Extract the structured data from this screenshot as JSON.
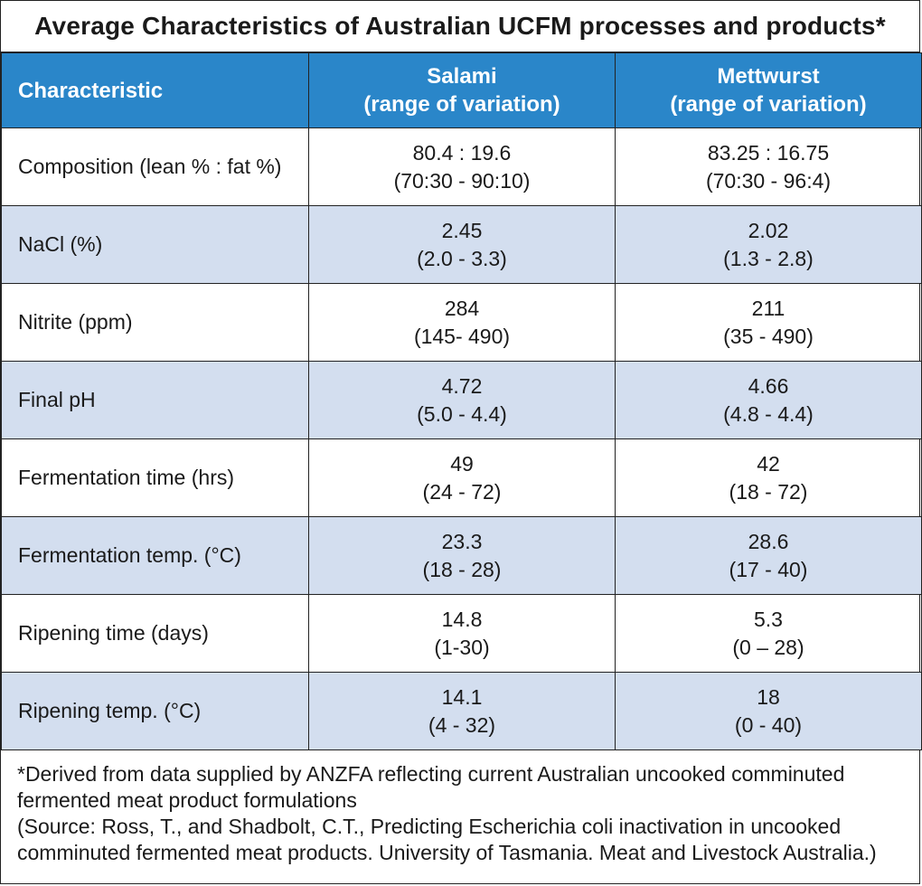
{
  "title": "Average Characteristics of Australian UCFM processes and products*",
  "columns": [
    {
      "line1": "Characteristic",
      "line2": ""
    },
    {
      "line1": "Salami",
      "line2": "(range of variation)"
    },
    {
      "line1": "Mettwurst",
      "line2": "(range of variation)"
    }
  ],
  "rows": [
    {
      "label": "Composition (lean % : fat %)",
      "salami": {
        "avg": "80.4 : 19.6",
        "range": "(70:30 - 90:10)"
      },
      "mettwurst": {
        "avg": "83.25 : 16.75",
        "range": "(70:30 - 96:4)"
      }
    },
    {
      "label": "NaCl (%)",
      "salami": {
        "avg": "2.45",
        "range": "(2.0 - 3.3)"
      },
      "mettwurst": {
        "avg": "2.02",
        "range": "(1.3 - 2.8)"
      }
    },
    {
      "label": "Nitrite (ppm)",
      "salami": {
        "avg": "284",
        "range": "(145- 490)"
      },
      "mettwurst": {
        "avg": "211",
        "range": "(35 - 490)"
      }
    },
    {
      "label": "Final pH",
      "salami": {
        "avg": "4.72",
        "range": "(5.0 - 4.4)"
      },
      "mettwurst": {
        "avg": "4.66",
        "range": "(4.8 - 4.4)"
      }
    },
    {
      "label": "Fermentation time (hrs)",
      "salami": {
        "avg": "49",
        "range": "(24 - 72)"
      },
      "mettwurst": {
        "avg": "42",
        "range": "(18 - 72)"
      }
    },
    {
      "label": "Fermentation temp. (°C)",
      "salami": {
        "avg": "23.3",
        "range": "(18 - 28)"
      },
      "mettwurst": {
        "avg": "28.6",
        "range": "(17 - 40)"
      }
    },
    {
      "label": "Ripening time (days)",
      "salami": {
        "avg": "14.8",
        "range": "(1-30)"
      },
      "mettwurst": {
        "avg": "5.3",
        "range": "(0 – 28)"
      }
    },
    {
      "label": "Ripening temp. (°C)",
      "salami": {
        "avg": "14.1",
        "range": "(4 - 32)"
      },
      "mettwurst": {
        "avg": "18",
        "range": "(0 - 40)"
      }
    }
  ],
  "footnote": {
    "line1": "*Derived from data supplied by ANZFA reflecting current Australian uncooked comminuted",
    "line2": "fermented meat product formulations",
    "line3": "(Source: Ross, T., and Shadbolt, C.T., Predicting Escherichia coli inactivation in uncooked",
    "line4": "comminuted fermented meat products. University of Tasmania. Meat and Livestock Australia.)"
  },
  "colors": {
    "header_bg": "#2a86c9",
    "shaded_row": "#d3deef"
  }
}
